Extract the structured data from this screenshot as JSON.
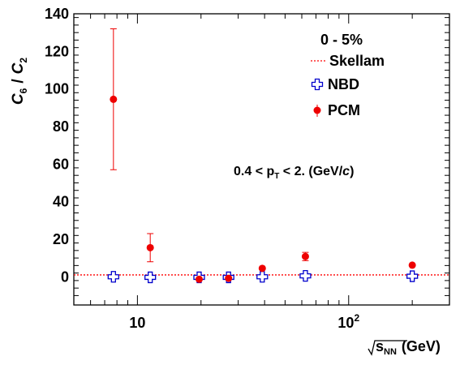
{
  "chart_data": {
    "type": "scatter",
    "xscale": "log",
    "xlim": [
      5,
      300
    ],
    "ylim": [
      -15,
      140
    ],
    "grid": false,
    "x_ticks": [
      {
        "value": 10,
        "label": "10"
      },
      {
        "value": 100,
        "label": "10",
        "exponent": "2"
      }
    ],
    "y_ticks": [
      {
        "value": 0,
        "label": "0"
      },
      {
        "value": 20,
        "label": "20"
      },
      {
        "value": 40,
        "label": "40"
      },
      {
        "value": 60,
        "label": "60"
      },
      {
        "value": 80,
        "label": "80"
      },
      {
        "value": 100,
        "label": "100"
      },
      {
        "value": 120,
        "label": "120"
      },
      {
        "value": 140,
        "label": "140"
      }
    ],
    "ylabel": {
      "c": "C",
      "num_sub": "6",
      "slash": "/",
      "den_sub": "2"
    },
    "xlabel": {
      "base": "s",
      "sub": "NN",
      "unit": "(GeV)"
    },
    "centrality": "0 - 5%",
    "kinematics": {
      "prefix": "0.4 < p",
      "sub": "T",
      "suffix": " < 2. (GeV/",
      "var": "c",
      "close": ")"
    },
    "legend_position": "top-right",
    "series": [
      {
        "name": "Skellam",
        "kind": "line",
        "color": "#ff0000",
        "dashed": true,
        "y": 1
      },
      {
        "name": "NBD",
        "kind": "marker",
        "marker": "open-cross",
        "color": "#0000cc",
        "x": [
          7.7,
          11.5,
          19.6,
          27,
          39,
          62.4,
          200
        ],
        "y": [
          0,
          -0.3,
          -0.3,
          -0.3,
          0,
          0.5,
          0.3
        ]
      },
      {
        "name": "PCM",
        "kind": "marker",
        "marker": "filled-circle",
        "color": "#ee0000",
        "x": [
          7.7,
          11.5,
          19.6,
          27,
          39,
          62.4,
          200
        ],
        "y": [
          94.5,
          15.5,
          -1.3,
          -0.8,
          4.5,
          10.8,
          6.2
        ],
        "err": [
          37.5,
          7.5,
          0.8,
          0.8,
          1.3,
          2.2,
          1.0
        ]
      }
    ]
  }
}
